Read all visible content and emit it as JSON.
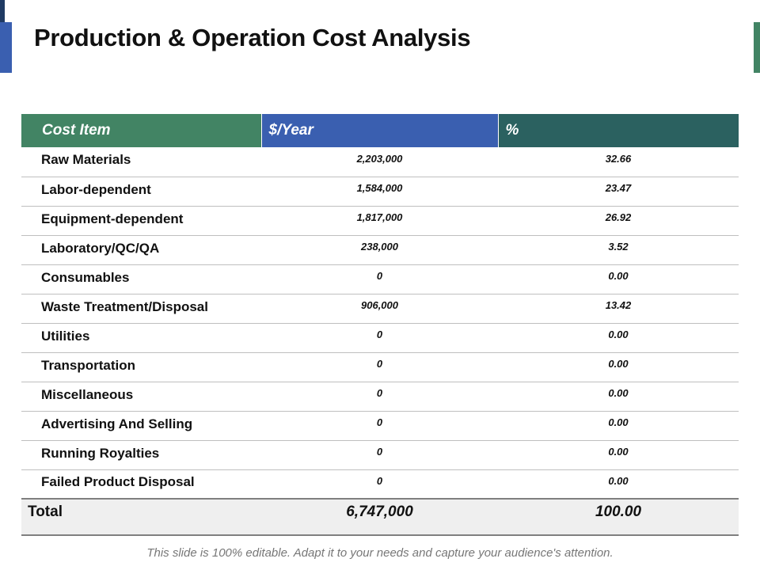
{
  "title": "Production & Operation Cost Analysis",
  "colors": {
    "header_cost_item": "#428464",
    "header_year": "#3a5fb0",
    "header_pct": "#2b6160",
    "accent_left_dark": "#1f3a63",
    "accent_left_blue": "#3a5fb0",
    "accent_right": "#428464"
  },
  "table": {
    "headers": [
      "Cost Item",
      "$/Year",
      "%"
    ],
    "rows": [
      {
        "item": "Raw Materials",
        "year": "2,203,000",
        "pct": "32.66"
      },
      {
        "item": "Labor-dependent",
        "year": "1,584,000",
        "pct": "23.47"
      },
      {
        "item": "Equipment-dependent",
        "year": "1,817,000",
        "pct": "26.92"
      },
      {
        "item": "Laboratory/QC/QA",
        "year": "238,000",
        "pct": "3.52"
      },
      {
        "item": "Consumables",
        "year": "0",
        "pct": "0.00"
      },
      {
        "item": "Waste Treatment/Disposal",
        "year": "906,000",
        "pct": "13.42"
      },
      {
        "item": "Utilities",
        "year": "0",
        "pct": "0.00"
      },
      {
        "item": "Transportation",
        "year": "0",
        "pct": "0.00"
      },
      {
        "item": "Miscellaneous",
        "year": "0",
        "pct": "0.00"
      },
      {
        "item": "Advertising And Selling",
        "year": "0",
        "pct": "0.00"
      },
      {
        "item": "Running Royalties",
        "year": "0",
        "pct": "0.00"
      },
      {
        "item": "Failed Product Disposal",
        "year": "0",
        "pct": "0.00"
      }
    ],
    "total": {
      "label": "Total",
      "year": "6,747,000",
      "pct": "100.00"
    }
  },
  "footer": "This slide is 100% editable. Adapt it to your needs and capture your audience's attention."
}
